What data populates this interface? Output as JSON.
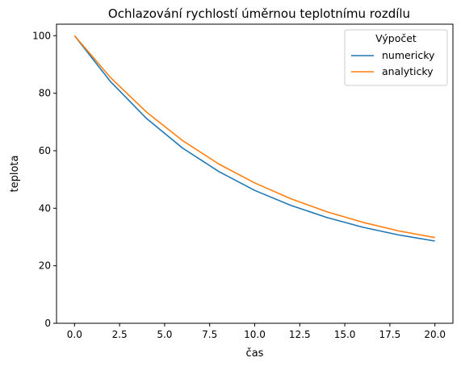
{
  "chart_data": {
    "type": "line",
    "title": "Ochlazování rychlostí úměrnou teplotnímu rozdílu",
    "xlabel": "čas",
    "ylabel": "teplota",
    "xlim": [
      -1,
      21
    ],
    "ylim": [
      0,
      104
    ],
    "x_ticks": [
      0.0,
      2.5,
      5.0,
      7.5,
      10.0,
      12.5,
      15.0,
      17.5,
      20.0
    ],
    "x_tick_labels": [
      "0.0",
      "2.5",
      "5.0",
      "7.5",
      "10.0",
      "12.5",
      "15.0",
      "17.5",
      "20.0"
    ],
    "y_ticks": [
      0,
      20,
      40,
      60,
      80,
      100
    ],
    "y_tick_labels": [
      "0",
      "20",
      "40",
      "60",
      "80",
      "100"
    ],
    "grid": false,
    "legend": {
      "title": "Výpočet",
      "placement": "upper-right"
    },
    "x": [
      0,
      2,
      4,
      6,
      8,
      10,
      12,
      14,
      16,
      18,
      20
    ],
    "series": [
      {
        "name": "numericky",
        "color": "#1f77b4",
        "values": [
          100.0,
          84.0,
          71.2,
          60.9,
          52.8,
          46.2,
          41.0,
          36.8,
          33.4,
          30.7,
          28.6
        ]
      },
      {
        "name": "analyticky",
        "color": "#ff7f0e",
        "values": [
          100.0,
          85.4,
          73.4,
          63.5,
          55.4,
          48.8,
          43.3,
          38.8,
          35.1,
          32.1,
          29.8
        ]
      }
    ]
  }
}
